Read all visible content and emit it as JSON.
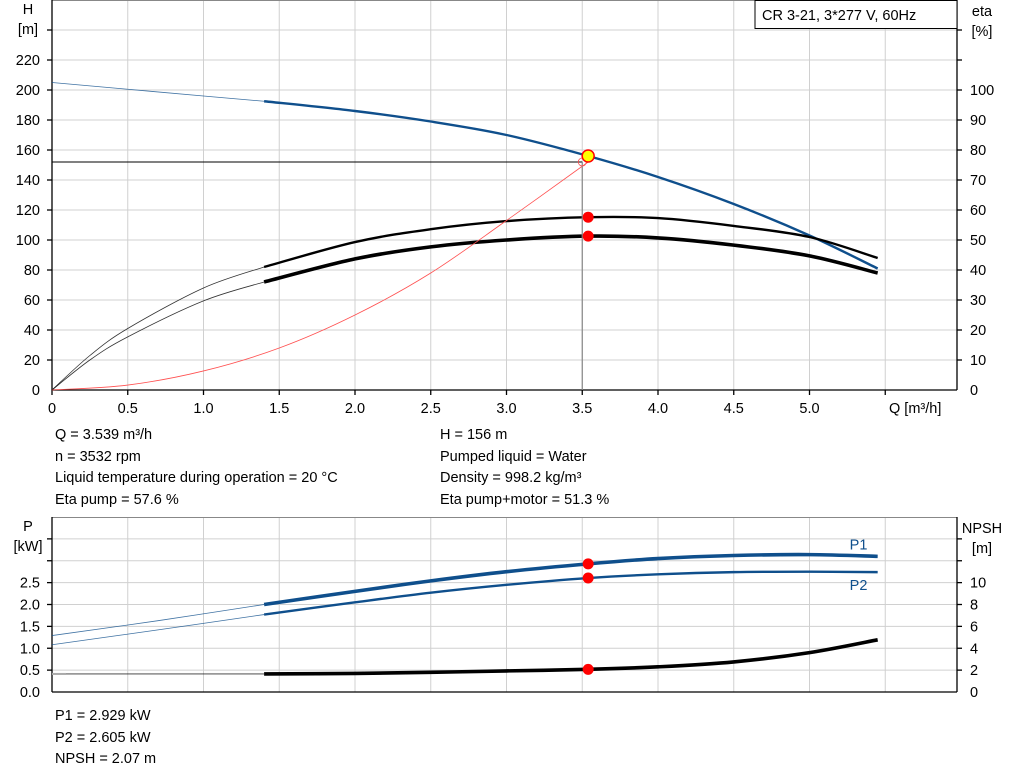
{
  "chart_data": [
    {
      "type": "line",
      "title": "CR 3-21, 3*277 V, 60Hz",
      "xlabel": "Q [m³/h]",
      "ylabel_left": [
        "H",
        "[m]"
      ],
      "ylabel_right": [
        "eta",
        "[%]"
      ],
      "xlim": [
        0,
        5.97
      ],
      "ylim_left": [
        0,
        260
      ],
      "ylim_right": [
        0,
        130
      ],
      "grid": true,
      "x_ticks": [
        "0",
        "0.5",
        "1.0",
        "1.5",
        "2.0",
        "2.5",
        "3.0",
        "3.5",
        "4.0",
        "4.5",
        "5.0"
      ],
      "y_ticks_left": [
        "0",
        "20",
        "40",
        "60",
        "80",
        "100",
        "120",
        "140",
        "160",
        "180",
        "200",
        "220"
      ],
      "y_ticks_right": [
        "0",
        "10",
        "20",
        "30",
        "40",
        "50",
        "60",
        "70",
        "80",
        "90",
        "100"
      ],
      "series": [
        {
          "id": "H",
          "axis": "left",
          "color": "#0f4f8c",
          "x": [
            0,
            0.5,
            1.0,
            1.4,
            2.0,
            2.5,
            3.0,
            3.539,
            4.0,
            4.5,
            5.0,
            5.45
          ],
          "values": [
            205,
            200.5,
            196,
            192.5,
            186,
            179,
            170,
            156,
            142,
            124,
            103,
            81
          ],
          "thick_from": 1.4
        },
        {
          "id": "eta-pump",
          "axis": "right",
          "color": "#000000",
          "x": [
            0,
            0.25,
            0.5,
            1.0,
            1.4,
            2.0,
            2.5,
            3.0,
            3.539,
            4.0,
            4.5,
            5.0,
            5.45
          ],
          "values": [
            0,
            11.5,
            20.5,
            34,
            41,
            49.3,
            53.6,
            56.3,
            57.6,
            57.3,
            54.7,
            51,
            44
          ],
          "thick_from": 1.4
        },
        {
          "id": "eta-pump-motor",
          "axis": "right",
          "color": "#000000",
          "x": [
            0,
            0.25,
            0.5,
            1.0,
            1.4,
            2.0,
            2.5,
            3.0,
            3.539,
            4.0,
            4.5,
            5.0,
            5.45
          ],
          "values": [
            0,
            10,
            17.7,
            29.7,
            36,
            43.7,
            47.7,
            50,
            51.3,
            50.7,
            48.3,
            44.7,
            39
          ],
          "thick_from": 1.4,
          "heavy": true
        },
        {
          "id": "system-curve",
          "axis": "left",
          "color": "#ff5050",
          "x": [
            0,
            0.5,
            1.0,
            1.5,
            2.0,
            2.5,
            3.0,
            3.539
          ],
          "values": [
            0,
            3.3,
            12.7,
            28,
            50,
            78,
            113,
            152
          ]
        }
      ],
      "duty_point": {
        "q": 3.539,
        "h": 156,
        "eta_pump": 57.6,
        "eta_pump_motor": 51.3,
        "system_h": 152,
        "guide_q": 3.5
      }
    },
    {
      "type": "line",
      "ylabel_left": [
        "P",
        "[kW]"
      ],
      "ylabel_right": [
        "NPSH",
        "[m]"
      ],
      "xlim": [
        0,
        5.97
      ],
      "ylim_left": [
        0,
        4.0
      ],
      "ylim_right": [
        0,
        16
      ],
      "grid": true,
      "y_ticks_left": [
        "0.0",
        "0.5",
        "1.0",
        "1.5",
        "2.0",
        "2.5"
      ],
      "y_ticks_right": [
        "0",
        "2",
        "4",
        "6",
        "8",
        "10"
      ],
      "series": [
        {
          "id": "P1",
          "name": "P1",
          "axis": "left",
          "color": "#0f4f8c",
          "x": [
            0,
            0.7,
            1.4,
            2.0,
            2.5,
            3.0,
            3.539,
            4.0,
            4.5,
            5.0,
            5.45
          ],
          "values": [
            1.29,
            1.63,
            2.0,
            2.3,
            2.54,
            2.75,
            2.929,
            3.05,
            3.12,
            3.14,
            3.1
          ],
          "thick_from": 1.4,
          "heavy": true
        },
        {
          "id": "P2",
          "name": "P2",
          "axis": "left",
          "color": "#0f4f8c",
          "x": [
            0,
            0.7,
            1.4,
            2.0,
            2.5,
            3.0,
            3.539,
            4.0,
            4.5,
            5.0,
            5.45
          ],
          "values": [
            1.08,
            1.42,
            1.77,
            2.05,
            2.27,
            2.45,
            2.605,
            2.69,
            2.74,
            2.75,
            2.74
          ],
          "thick_from": 1.4
        },
        {
          "id": "NPSH",
          "axis": "right",
          "color": "#000000",
          "x": [
            0,
            1.4,
            2.0,
            2.5,
            3.0,
            3.539,
            4.0,
            4.5,
            5.0,
            5.45
          ],
          "values": [
            1.65,
            1.65,
            1.7,
            1.8,
            1.93,
            2.07,
            2.3,
            2.75,
            3.6,
            4.77
          ],
          "thick_from": 1.4,
          "heavy": true
        }
      ],
      "duty_point": {
        "q": 3.539,
        "p1": 2.929,
        "p2": 2.605,
        "npsh": 2.07
      }
    }
  ],
  "info_top": {
    "left": [
      "Q = 3.539 m³/h",
      "n = 3532 rpm",
      "Liquid temperature during operation = 20 °C",
      "Eta pump = 57.6 %"
    ],
    "right": [
      "H = 156 m",
      "Pumped liquid = Water",
      "Density = 998.2 kg/m³",
      "Eta pump+motor = 51.3 %"
    ]
  },
  "info_bottom": [
    "P1 = 2.929 kW",
    "P2 = 2.605 kW",
    "NPSH = 2.07 m"
  ],
  "colors": {
    "curve_blue": "#0f4f8c",
    "duty_point_fill": "#ffff00",
    "duty_point_stroke": "#ff0000",
    "marker_red": "#ff0000",
    "system_curve": "#ff5050",
    "grid": "#d0d0d0"
  }
}
